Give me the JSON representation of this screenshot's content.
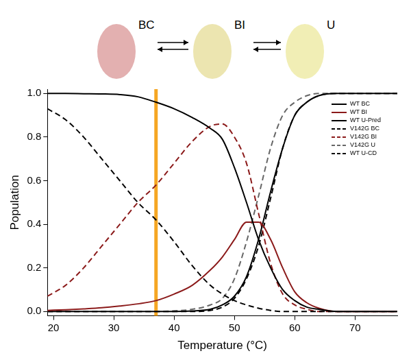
{
  "scheme": {
    "states": [
      "BC",
      "BI",
      "U"
    ]
  },
  "chart_data": {
    "type": "line",
    "x_label": "Temperature (°C)",
    "y_label": "Population",
    "x": [
      19,
      22,
      25,
      28,
      31,
      34,
      37,
      40,
      43,
      46,
      48,
      50,
      52,
      54,
      56,
      58,
      60,
      62,
      64,
      67,
      70,
      77
    ],
    "series": [
      {
        "name": "WT BC",
        "color": "#000000",
        "line_style": "solid",
        "values": [
          1.0,
          1.0,
          0.999,
          0.998,
          0.995,
          0.985,
          0.96,
          0.93,
          0.89,
          0.84,
          0.79,
          0.66,
          0.5,
          0.33,
          0.2,
          0.1,
          0.05,
          0.02,
          0.01,
          0,
          0,
          0
        ]
      },
      {
        "name": "WT BI",
        "color": "#8b1a1a",
        "line_style": "solid",
        "values": [
          0.005,
          0.008,
          0.012,
          0.017,
          0.025,
          0.035,
          0.05,
          0.08,
          0.12,
          0.19,
          0.25,
          0.33,
          0.41,
          0.41,
          0.33,
          0.2,
          0.09,
          0.04,
          0.015,
          0,
          0,
          0
        ]
      },
      {
        "name": "WT U-Pred",
        "color": "#000000",
        "line_style": "solid",
        "values": [
          0,
          0,
          0,
          0,
          0,
          0,
          0,
          0,
          0.002,
          0.01,
          0.03,
          0.07,
          0.16,
          0.33,
          0.55,
          0.75,
          0.9,
          0.96,
          0.99,
          1,
          1,
          1
        ]
      },
      {
        "name": "V142G BC",
        "color": "#000000",
        "line_style": "dashed",
        "values": [
          0.93,
          0.88,
          0.8,
          0.7,
          0.6,
          0.5,
          0.42,
          0.32,
          0.21,
          0.12,
          0.08,
          0.05,
          0.03,
          0.015,
          0.005,
          0,
          0,
          0,
          0,
          0,
          0,
          0
        ]
      },
      {
        "name": "V142G BI",
        "color": "#8b1a1a",
        "line_style": "dashed",
        "values": [
          0.07,
          0.12,
          0.2,
          0.3,
          0.4,
          0.5,
          0.58,
          0.68,
          0.78,
          0.85,
          0.86,
          0.8,
          0.68,
          0.45,
          0.22,
          0.08,
          0.03,
          0.01,
          0,
          0,
          0,
          0
        ]
      },
      {
        "name": "V142G U",
        "color": "#666666",
        "line_style": "dashed",
        "values": [
          0,
          0,
          0,
          0,
          0,
          0,
          0,
          0.003,
          0.01,
          0.03,
          0.06,
          0.15,
          0.32,
          0.53,
          0.75,
          0.9,
          0.96,
          0.99,
          1,
          1,
          1,
          1
        ]
      },
      {
        "name": "WT U-CD",
        "color": "#000000",
        "line_style": "dashed",
        "values": [
          0,
          0,
          0,
          0,
          0,
          0,
          0,
          0,
          0,
          0.005,
          0.02,
          0.06,
          0.15,
          0.3,
          0.52,
          0.75,
          0.9,
          0.96,
          0.99,
          1,
          1,
          1
        ]
      }
    ],
    "reference_lines": [
      {
        "x": 37,
        "color": "#f5a623"
      }
    ],
    "xlim": [
      19,
      77
    ],
    "xticks": [
      20,
      30,
      40,
      50,
      60,
      70
    ],
    "ylim": [
      -0.02,
      1.02
    ],
    "yticks": [
      {
        "value": 0,
        "label": "0.0"
      },
      {
        "value": 0.2,
        "label": "0.2"
      },
      {
        "value": 0.4,
        "label": "0.4"
      },
      {
        "value": 0.6,
        "label": "0.6"
      },
      {
        "value": 0.8,
        "label": "0.8"
      },
      {
        "value": 1.0,
        "label": "1.0"
      }
    ],
    "grid": false,
    "legend": "upper right"
  }
}
